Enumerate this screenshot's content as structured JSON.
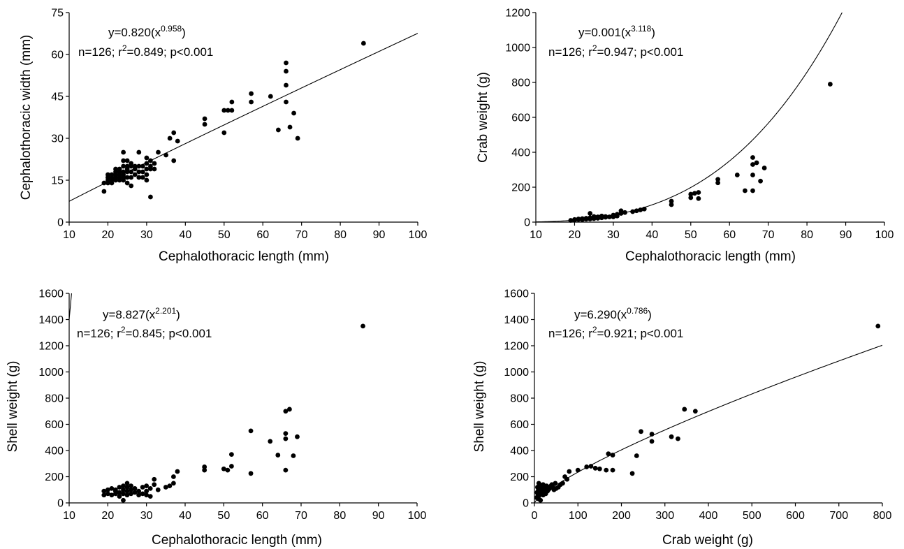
{
  "chart_data": [
    {
      "type": "scatter",
      "xlabel": "Cephalothoracic length (mm)",
      "ylabel": "Cephalothoracic width (mm)",
      "xlim": [
        10,
        100
      ],
      "ylim": [
        0,
        75
      ],
      "x_ticks": [
        "10",
        "20",
        "30",
        "40",
        "50",
        "60",
        "70",
        "80",
        "90",
        "100"
      ],
      "y_ticks": [
        "0",
        "15",
        "30",
        "45",
        "60",
        "75"
      ],
      "equation": {
        "base": "y=0.820(x",
        "exponent": "0.958",
        "close": ")"
      },
      "stats": {
        "prefix": "n=126; r",
        "exponent": "2",
        "suffix": "=0.849; p<0.001"
      },
      "fit": {
        "a": 0.82,
        "b": 0.958
      },
      "x": [
        19,
        19,
        20,
        20,
        20,
        20,
        21,
        21,
        21,
        21,
        22,
        22,
        22,
        22,
        22,
        23,
        23,
        23,
        23,
        23,
        24,
        24,
        24,
        24,
        24,
        24,
        24,
        25,
        25,
        25,
        25,
        25,
        25,
        26,
        26,
        26,
        26,
        26,
        27,
        27,
        27,
        28,
        28,
        28,
        28,
        29,
        29,
        29,
        30,
        30,
        30,
        30,
        30,
        31,
        31,
        31,
        31,
        32,
        32,
        33,
        35,
        36,
        37,
        37,
        38,
        45,
        45,
        50,
        50,
        51,
        52,
        52,
        57,
        57,
        62,
        64,
        66,
        66,
        66,
        66,
        67,
        68,
        69,
        86
      ],
      "y": [
        11,
        14,
        14,
        15,
        16,
        17,
        14,
        15,
        16,
        17,
        15,
        16,
        17,
        18,
        19,
        15,
        16,
        17,
        18,
        19,
        15,
        16,
        17,
        18,
        20,
        22,
        25,
        14,
        16,
        18,
        19,
        20,
        22,
        13,
        16,
        18,
        20,
        21,
        17,
        19,
        20,
        16,
        18,
        20,
        25,
        16,
        18,
        20,
        15,
        17,
        19,
        21,
        23,
        9,
        19,
        20,
        22,
        19,
        21,
        25,
        24,
        30,
        22,
        32,
        29,
        35,
        37,
        32,
        40,
        40,
        40,
        43,
        43,
        46,
        45,
        33,
        43,
        49,
        54,
        57,
        34,
        39,
        30,
        64
      ]
    },
    {
      "type": "scatter",
      "xlabel": "Cephalothoracic length (mm)",
      "ylabel": "Crab weight (g)",
      "xlim": [
        10,
        100
      ],
      "ylim": [
        0,
        1200
      ],
      "x_ticks": [
        "10",
        "20",
        "30",
        "40",
        "50",
        "60",
        "70",
        "80",
        "90",
        "100"
      ],
      "y_ticks": [
        "0",
        "200",
        "400",
        "600",
        "800",
        "1000",
        "1200"
      ],
      "equation": {
        "base": "y=0.001(x",
        "exponent": "3.118",
        "close": ")"
      },
      "stats": {
        "prefix": "n=126; r",
        "exponent": "2",
        "suffix": "=0.947; p<0.001"
      },
      "fit": {
        "a": 0.001,
        "b": 3.118
      },
      "x": [
        19,
        20,
        20,
        21,
        21,
        22,
        22,
        23,
        23,
        24,
        24,
        24,
        25,
        25,
        25,
        26,
        26,
        27,
        27,
        28,
        28,
        29,
        30,
        30,
        31,
        31,
        32,
        32,
        33,
        35,
        36,
        37,
        38,
        45,
        45,
        50,
        50,
        51,
        52,
        52,
        57,
        57,
        62,
        64,
        66,
        66,
        66,
        66,
        67,
        68,
        69,
        86
      ],
      "y": [
        10,
        12,
        15,
        15,
        18,
        14,
        20,
        17,
        22,
        18,
        25,
        50,
        20,
        26,
        32,
        22,
        30,
        25,
        35,
        28,
        32,
        30,
        30,
        40,
        35,
        45,
        50,
        65,
        55,
        60,
        65,
        70,
        75,
        100,
        120,
        140,
        160,
        165,
        135,
        170,
        225,
        245,
        270,
        180,
        180,
        270,
        330,
        370,
        340,
        235,
        310,
        790
      ]
    },
    {
      "type": "scatter",
      "xlabel": "Cephalothoracic length (mm)",
      "ylabel": "Shell weight (g)",
      "xlim": [
        10,
        100
      ],
      "ylim": [
        0,
        1600
      ],
      "x_ticks": [
        "10",
        "20",
        "30",
        "40",
        "50",
        "60",
        "70",
        "80",
        "90",
        "100"
      ],
      "y_ticks": [
        "0",
        "200",
        "400",
        "600",
        "800",
        "1000",
        "1200",
        "1400",
        "1600"
      ],
      "equation": {
        "base": "y=8.827(x",
        "exponent": "2.201",
        "close": ")"
      },
      "stats": {
        "prefix": "n=126; r",
        "exponent": "2",
        "suffix": "=0.845; p<0.001"
      },
      "fit": {
        "a": 8.827,
        "b": 2.201
      },
      "x": [
        19,
        19,
        20,
        20,
        21,
        21,
        22,
        22,
        22,
        23,
        23,
        23,
        24,
        24,
        24,
        24,
        25,
        25,
        25,
        25,
        26,
        26,
        26,
        27,
        27,
        28,
        28,
        29,
        29,
        30,
        30,
        30,
        31,
        31,
        32,
        32,
        33,
        35,
        36,
        37,
        37,
        38,
        45,
        45,
        50,
        51,
        52,
        52,
        57,
        57,
        62,
        64,
        66,
        66,
        66,
        66,
        67,
        68,
        69,
        86
      ],
      "y": [
        60,
        90,
        70,
        100,
        60,
        110,
        70,
        90,
        100,
        80,
        120,
        50,
        70,
        100,
        130,
        20,
        60,
        90,
        120,
        150,
        70,
        100,
        130,
        80,
        110,
        60,
        90,
        70,
        120,
        60,
        90,
        130,
        50,
        110,
        140,
        180,
        100,
        120,
        130,
        150,
        200,
        240,
        250,
        275,
        260,
        250,
        280,
        370,
        550,
        225,
        470,
        365,
        250,
        490,
        530,
        700,
        715,
        360,
        505,
        1350
      ]
    },
    {
      "type": "scatter",
      "xlabel": "Crab weight (g)",
      "ylabel": "Shell weight (g)",
      "xlim": [
        0,
        800
      ],
      "ylim": [
        0,
        1600
      ],
      "x_ticks": [
        "0",
        "100",
        "200",
        "300",
        "400",
        "500",
        "600",
        "700",
        "800"
      ],
      "y_ticks": [
        "0",
        "200",
        "400",
        "600",
        "800",
        "1000",
        "1200",
        "1400",
        "1600"
      ],
      "equation": {
        "base": "y=6.290(x",
        "exponent": "0.786",
        "close": ")"
      },
      "stats": {
        "prefix": "n=126; r",
        "exponent": "2",
        "suffix": "=0.921; p<0.001"
      },
      "fit": {
        "a": 6.29,
        "b": 0.786
      },
      "x": [
        5,
        6,
        7,
        8,
        9,
        10,
        10,
        11,
        12,
        12,
        13,
        14,
        15,
        15,
        16,
        17,
        18,
        19,
        20,
        20,
        22,
        24,
        25,
        26,
        28,
        30,
        30,
        32,
        35,
        38,
        40,
        42,
        45,
        48,
        50,
        55,
        60,
        65,
        70,
        75,
        80,
        100,
        120,
        130,
        140,
        150,
        165,
        170,
        180,
        180,
        225,
        235,
        245,
        270,
        270,
        315,
        330,
        345,
        370,
        790
      ],
      "y": [
        40,
        80,
        120,
        60,
        100,
        30,
        150,
        90,
        140,
        60,
        110,
        20,
        80,
        130,
        100,
        70,
        120,
        90,
        60,
        140,
        80,
        110,
        100,
        70,
        130,
        90,
        120,
        100,
        110,
        130,
        140,
        120,
        100,
        150,
        110,
        120,
        140,
        150,
        200,
        180,
        240,
        250,
        275,
        280,
        265,
        260,
        250,
        375,
        250,
        365,
        225,
        360,
        545,
        470,
        525,
        505,
        490,
        715,
        700,
        1350
      ]
    }
  ]
}
